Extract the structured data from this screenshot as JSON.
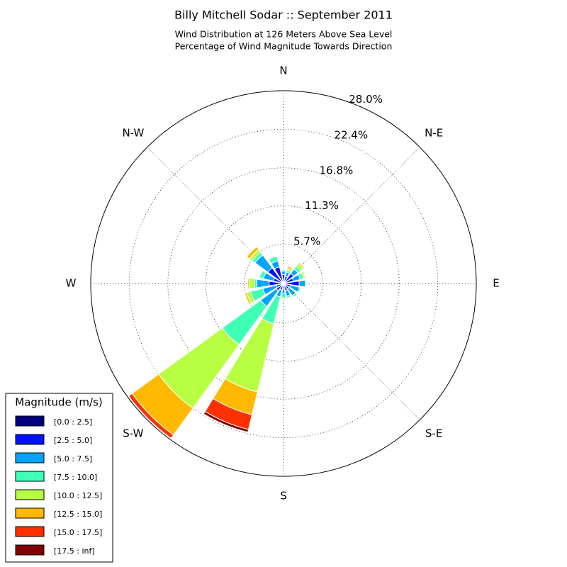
{
  "chart_data": {
    "type": "windrose",
    "title": "Billy Mitchell Sodar :: September 2011",
    "subtitle": [
      "Wind Distribution at 126 Meters Above Sea Level",
      "Percentage of Wind Magnitude Towards Direction"
    ],
    "categories": [
      "N",
      null,
      "N-E",
      null,
      "E",
      null,
      "S-E",
      null,
      "S",
      null,
      "S-W",
      null,
      "W",
      null,
      "N-W",
      null
    ],
    "rlim": [
      0,
      28.0
    ],
    "rticks": [
      {
        "value": 5.7,
        "label": "5.7%"
      },
      {
        "value": 11.3,
        "label": "11.3%"
      },
      {
        "value": 16.8,
        "label": "16.8%"
      },
      {
        "value": 22.4,
        "label": "22.4%"
      },
      {
        "value": 28.0,
        "label": "28.0%"
      }
    ],
    "grid": true,
    "legend": {
      "title": "Magnitude (m/s)",
      "position": "lower left"
    },
    "series": [
      {
        "name": "[0.0 : 2.5]",
        "color": "#000080",
        "values": [
          0.3,
          0.3,
          0.3,
          0.3,
          0.3,
          0.3,
          0.3,
          0.3,
          0.3,
          0.3,
          0.3,
          0.3,
          0.3,
          0.3,
          0.3,
          0.3
        ]
      },
      {
        "name": "[2.5 : 5.0]",
        "color": "#0010ff",
        "values": [
          1.0,
          0.8,
          1.5,
          1.2,
          2.0,
          0.8,
          0.7,
          0.8,
          0.5,
          0.7,
          1.0,
          0.8,
          1.8,
          1.2,
          2.5,
          2.2
        ]
      },
      {
        "name": "[5.0 : 7.5]",
        "color": "#00a4ff",
        "values": [
          0.5,
          0.6,
          0.8,
          1.0,
          0.9,
          1.3,
          1.2,
          0.8,
          0.7,
          1.0,
          2.8,
          2.0,
          1.8,
          1.5,
          2.3,
          0.9
        ]
      },
      {
        "name": "[7.5 : 10.0]",
        "color": "#40ffb7",
        "values": [
          0.2,
          0.3,
          0.5,
          0.5,
          0.1,
          0.2,
          0.3,
          0.3,
          0.6,
          4.0,
          6.9,
          1.8,
          0.3,
          0.6,
          0.5,
          0.7
        ]
      },
      {
        "name": "[10.0 : 12.5]",
        "color": "#b7ff40",
        "values": [
          0,
          0.3,
          0.5,
          0.3,
          0,
          0,
          0,
          0,
          0.2,
          10.2,
          11.4,
          0.6,
          0.8,
          0,
          0.5,
          0
        ]
      },
      {
        "name": "[12.5 : 15.0]",
        "color": "#ffb900",
        "values": [
          0,
          0.3,
          0.2,
          0,
          0,
          0,
          0,
          0,
          0,
          3.4,
          4.8,
          0.3,
          0.2,
          0,
          0.5,
          0
        ]
      },
      {
        "name": "[15.0 : 17.5]",
        "color": "#ff3000",
        "values": [
          0,
          0,
          0,
          0,
          0,
          0,
          0,
          0,
          0,
          2.2,
          0.6,
          0,
          0,
          0,
          0,
          0
        ]
      },
      {
        "name": "[17.5 : inf]",
        "color": "#800000",
        "values": [
          0,
          0,
          0,
          0,
          0,
          0,
          0,
          0,
          0,
          0.4,
          0,
          0,
          0,
          0,
          0,
          0
        ]
      }
    ]
  }
}
